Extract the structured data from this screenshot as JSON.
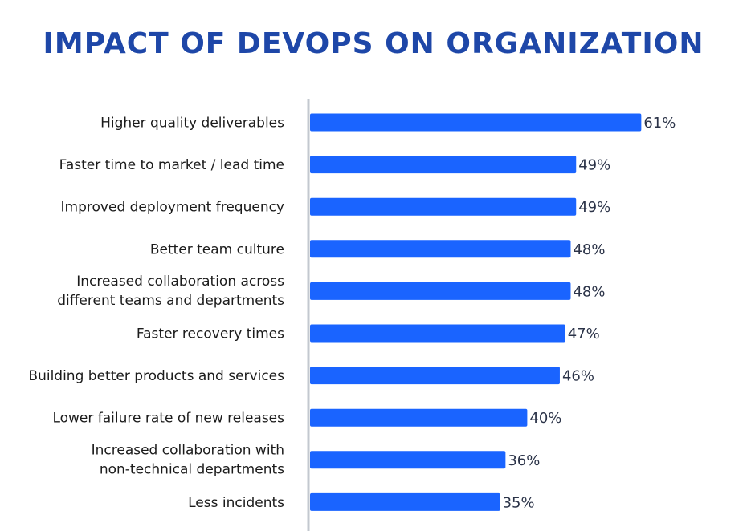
{
  "chart_data": {
    "type": "bar",
    "orientation": "horizontal",
    "title": "IMPACT OF DEVOPS ON ORGANIZATION",
    "xlabel": "",
    "ylabel": "",
    "xlim": [
      0,
      100
    ],
    "grid": false,
    "legend": null,
    "unit": "%",
    "categories": [
      [
        "Higher quality deliverables"
      ],
      [
        "Faster time to market / lead time"
      ],
      [
        "Improved deployment frequency"
      ],
      [
        "Better team culture"
      ],
      [
        "Increased collaboration across",
        "different teams and departments"
      ],
      [
        "Faster recovery times"
      ],
      [
        "Building better products and services"
      ],
      [
        "Lower failure rate of new releases"
      ],
      [
        "Increased collaboration with",
        "non-technical departments"
      ],
      [
        "Less incidents"
      ]
    ],
    "values": [
      61,
      49,
      49,
      48,
      48,
      47,
      46,
      40,
      36,
      35
    ],
    "value_labels": [
      "61%",
      "49%",
      "49%",
      "48%",
      "48%",
      "47%",
      "46%",
      "40%",
      "36%",
      "35%"
    ],
    "colors": {
      "bar": "#1a64ff",
      "title": "#1e47a8",
      "axis": "#c3c8cf"
    }
  }
}
